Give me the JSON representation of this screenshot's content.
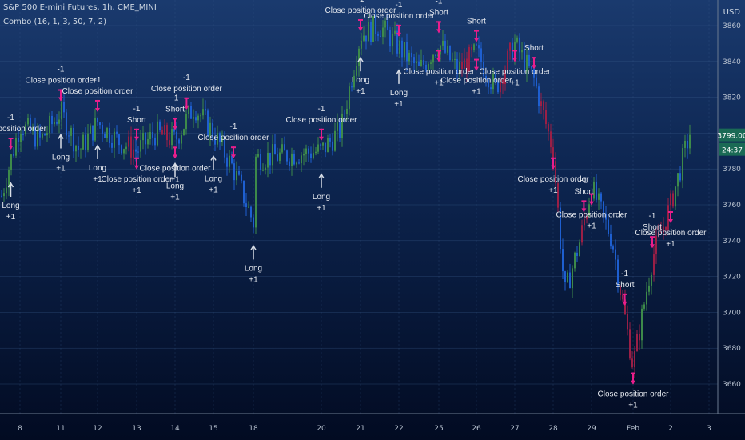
{
  "header": {
    "symbol_title": "S&P 500 E-mini Futures, 1h, CME_MINI",
    "indicator_label": "Combo (16, 1, 3, 50, 7, 2)",
    "currency": "USD"
  },
  "price_labels": {
    "last_price": "3799.00",
    "countdown": "24:37"
  },
  "colors": {
    "up_candle": "#3d8a4a",
    "down_candle": "#1e5fd0",
    "short_candle": "#9a1f46",
    "order_marker": "#e91e8c",
    "long_arrow": "#d8dde6",
    "price_label_green": "#1a6a55"
  },
  "chart_data": {
    "type": "candlestick",
    "title": "S&P 500 E-mini Futures, 1h, CME_MINI",
    "ylim": [
      3650,
      3870
    ],
    "y_ticks": [
      3660,
      3680,
      3700,
      3720,
      3740,
      3760,
      3780,
      3800,
      3820,
      3840,
      3860
    ],
    "x_tick_labels": [
      "8",
      "11",
      "12",
      "13",
      "14",
      "15",
      "18",
      "20",
      "21",
      "22",
      "25",
      "26",
      "27",
      "28",
      "29",
      "Feb",
      "2",
      "3"
    ],
    "grid": true,
    "price_path": [
      {
        "x": "7",
        "y": 3765
      },
      {
        "x": "8",
        "y": 3805
      },
      {
        "x": "8.5",
        "y": 3796
      },
      {
        "x": "11",
        "y": 3812
      },
      {
        "x": "11.5",
        "y": 3790
      },
      {
        "x": "12",
        "y": 3806
      },
      {
        "x": "12.5",
        "y": 3796
      },
      {
        "x": "13",
        "y": 3790
      },
      {
        "x": "13.5",
        "y": 3800
      },
      {
        "x": "14",
        "y": 3796
      },
      {
        "x": "14.5",
        "y": 3815
      },
      {
        "x": "15",
        "y": 3800
      },
      {
        "x": "15.5",
        "y": 3780
      },
      {
        "x": "18",
        "y": 3750
      },
      {
        "x": "19",
        "y": 3770
      },
      {
        "x": "20",
        "y": 3790
      },
      {
        "x": "20.5",
        "y": 3802
      },
      {
        "x": "21",
        "y": 3855
      },
      {
        "x": "21.5",
        "y": 3860
      },
      {
        "x": "22",
        "y": 3848
      },
      {
        "x": "22.5",
        "y": 3835
      },
      {
        "x": "25",
        "y": 3850
      },
      {
        "x": "25.5",
        "y": 3835
      },
      {
        "x": "26",
        "y": 3845
      },
      {
        "x": "26.5",
        "y": 3825
      },
      {
        "x": "27",
        "y": 3850
      },
      {
        "x": "27.5",
        "y": 3830
      },
      {
        "x": "28",
        "y": 3790
      },
      {
        "x": "28.3",
        "y": 3710
      },
      {
        "x": "28.7",
        "y": 3740
      },
      {
        "x": "29",
        "y": 3770
      },
      {
        "x": "29.5",
        "y": 3740
      },
      {
        "x": "Feb",
        "y": 3670
      },
      {
        "x": "Feb.5",
        "y": 3730
      },
      {
        "x": "2",
        "y": 3760
      },
      {
        "x": "2.5",
        "y": 3800
      }
    ],
    "annotations": [
      {
        "kind": "long_entry",
        "label": "Long",
        "qty": "+1",
        "near_x": "7.5"
      },
      {
        "kind": "close",
        "label": "Close position order",
        "qty": "-1",
        "near_x": "7.5"
      },
      {
        "kind": "long_entry",
        "label": "Long",
        "qty": "+1",
        "near_x": "11"
      },
      {
        "kind": "close",
        "label": "Close position order",
        "qty": "-1",
        "near_x": "11"
      },
      {
        "kind": "long_entry",
        "label": "Long",
        "qty": "+1",
        "near_x": "12"
      },
      {
        "kind": "close",
        "label": "Close position order",
        "qty": "-1",
        "near_x": "12"
      },
      {
        "kind": "short_entry",
        "label": "Short",
        "qty": "-1",
        "near_x": "13"
      },
      {
        "kind": "close",
        "label": "Close position order",
        "qty": "+1",
        "near_x": "13"
      },
      {
        "kind": "short_entry",
        "label": "Short",
        "qty": "-1",
        "near_x": "14"
      },
      {
        "kind": "close",
        "label": "Close position order",
        "qty": "+1",
        "near_x": "14"
      },
      {
        "kind": "long_entry",
        "label": "Long",
        "qty": "+1",
        "near_x": "14"
      },
      {
        "kind": "close",
        "label": "Close position order",
        "qty": "-1",
        "near_x": "14.3"
      },
      {
        "kind": "long_entry",
        "label": "Long",
        "qty": "+1",
        "near_x": "15"
      },
      {
        "kind": "close",
        "label": "Close position order",
        "qty": "-1",
        "near_x": "15.5"
      },
      {
        "kind": "long_entry",
        "label": "Long",
        "qty": "+1",
        "near_x": "18"
      },
      {
        "kind": "close",
        "label": "Close position order",
        "qty": "-1",
        "near_x": "20"
      },
      {
        "kind": "long_entry",
        "label": "Long",
        "qty": "+1",
        "near_x": "20"
      },
      {
        "kind": "close",
        "label": "Close position order",
        "qty": "-1",
        "near_x": "21"
      },
      {
        "kind": "long_entry",
        "label": "Long",
        "qty": "+1",
        "near_x": "21"
      },
      {
        "kind": "close",
        "label": "Close position order",
        "qty": "-1",
        "near_x": "22"
      },
      {
        "kind": "long_entry",
        "label": "Long",
        "qty": "+1",
        "near_x": "22"
      },
      {
        "kind": "short_entry",
        "label": "Short",
        "qty": "-1",
        "near_x": "25"
      },
      {
        "kind": "close",
        "label": "Close position order",
        "qty": "+1",
        "near_x": "25"
      },
      {
        "kind": "short_entry",
        "label": "Short",
        "qty": "",
        "near_x": "26"
      },
      {
        "kind": "close",
        "label": "Close position order",
        "qty": "+1",
        "near_x": "26"
      },
      {
        "kind": "close",
        "label": "Close position order",
        "qty": "+1",
        "near_x": "27"
      },
      {
        "kind": "short_entry",
        "label": "Short",
        "qty": "",
        "near_x": "27.5"
      },
      {
        "kind": "close",
        "label": "Close position order",
        "qty": "+1",
        "near_x": "28"
      },
      {
        "kind": "short_entry",
        "label": "Short",
        "qty": "-1",
        "near_x": "28.8"
      },
      {
        "kind": "close",
        "label": "Close position order",
        "qty": "+1",
        "near_x": "29"
      },
      {
        "kind": "short_entry",
        "label": "Short",
        "qty": "-1",
        "near_x": "29.8"
      },
      {
        "kind": "close",
        "label": "Close position order",
        "qty": "+1",
        "near_x": "Feb"
      },
      {
        "kind": "short_entry",
        "label": "Short",
        "qty": "-1",
        "near_x": "Feb.5"
      },
      {
        "kind": "close",
        "label": "Close position order",
        "qty": "+1",
        "near_x": "2"
      }
    ]
  }
}
